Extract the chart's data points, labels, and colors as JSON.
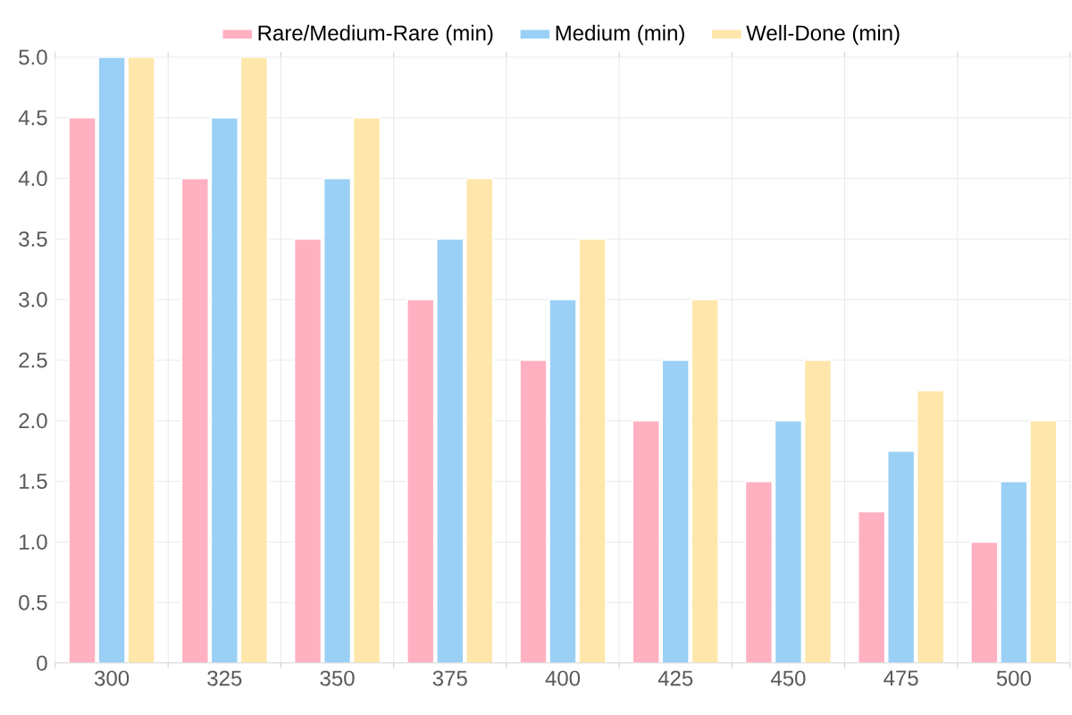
{
  "chart_data": {
    "type": "bar",
    "categories": [
      "300",
      "325",
      "350",
      "375",
      "400",
      "425",
      "450",
      "475",
      "500"
    ],
    "series": [
      {
        "name": "Rare/Medium-Rare (min)",
        "color": "#ffb1c1",
        "values": [
          4.5,
          4,
          3.5,
          3,
          2.5,
          2,
          1.5,
          1.25,
          1
        ]
      },
      {
        "name": "Medium (min)",
        "color": "#9ad0f5",
        "values": [
          5,
          4.5,
          4,
          3.5,
          3,
          2.5,
          2,
          1.75,
          1.5
        ]
      },
      {
        "name": "Well-Done (min)",
        "color": "#ffe6aa",
        "values": [
          5,
          5,
          4.5,
          4,
          3.5,
          3,
          2.5,
          2.25,
          2
        ]
      }
    ],
    "ylim": [
      0,
      5
    ],
    "yticks": [
      0,
      0.5,
      {
        "value": 1,
        "label": "1.0"
      },
      1.5,
      {
        "value": 2,
        "label": "2.0"
      },
      2.5,
      {
        "value": 3,
        "label": "3.0"
      },
      3.5,
      {
        "value": 4,
        "label": "4.0"
      },
      4.5,
      {
        "value": 5,
        "label": "5.0"
      }
    ],
    "grid": true,
    "legend": "top"
  }
}
